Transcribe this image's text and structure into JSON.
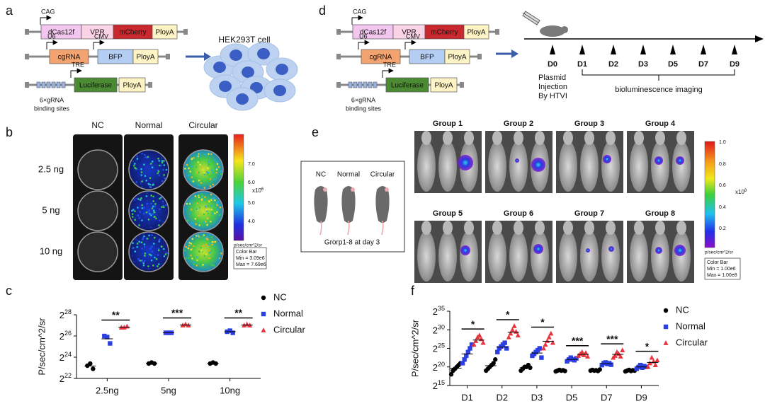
{
  "panel_labels": [
    "a",
    "b",
    "c",
    "d",
    "e",
    "f"
  ],
  "a": {
    "constructs": [
      {
        "promoters": [
          "CAG"
        ],
        "parts": [
          "dCas12f",
          "VPR",
          "mCherry",
          "PloyA"
        ]
      },
      {
        "promoters": [
          "U6",
          "CMV"
        ],
        "parts": [
          "cgRNA",
          "BFP",
          "PloyA"
        ]
      },
      {
        "promoters": [
          "TRE"
        ],
        "parts": [
          "Luciferase",
          "PloyA"
        ],
        "note": [
          "6×gRNA",
          "binding sites"
        ]
      }
    ],
    "cell_label": "HEK293T cell"
  },
  "b": {
    "columns": [
      "NC",
      "Normal",
      "Circular"
    ],
    "rows": [
      "2.5 ng",
      "5 ng",
      "10 ng"
    ],
    "colorbar": {
      "ticks": [
        "7.0",
        "6.0",
        "5.0",
        "4.0"
      ],
      "multiplier": "x10",
      "exponent": "6",
      "unit": "p/sec/cm^2/sr",
      "box": [
        "Color Bar",
        "Min = 3.09e6",
        "Max = 7.69e6"
      ]
    }
  },
  "d": {
    "constructs": [
      {
        "promoters": [
          "CAG"
        ],
        "parts": [
          "dCas12f",
          "VPR",
          "mCherry",
          "PloyA"
        ]
      },
      {
        "promoters": [
          "U6",
          "CMV"
        ],
        "parts": [
          "cgRNA",
          "BFP",
          "PloyA"
        ]
      },
      {
        "promoters": [
          "TRE"
        ],
        "parts": [
          "Luciferase",
          "PloyA"
        ],
        "note": [
          "6×gRNA",
          "binding sites"
        ]
      }
    ],
    "timepoints": [
      "D0",
      "D1",
      "D2",
      "D3",
      "D5",
      "D7",
      "D9"
    ],
    "injection": [
      "Plasmid",
      "Injection",
      "By HTVI"
    ],
    "imaging": "bioluminescence imaging"
  },
  "e": {
    "inset": {
      "labels": [
        "NC",
        "Normal",
        "Circular"
      ],
      "caption": "Grorp1-8 at day 3"
    },
    "groups": [
      "Group 1",
      "Group 2",
      "Group 3",
      "Group 4",
      "Group 5",
      "Group 6",
      "Group 7",
      "Group 8"
    ],
    "colorbar": {
      "ticks": [
        "1.0",
        "0.8",
        "0.6",
        "0.4",
        "0.2"
      ],
      "multiplier": "x10",
      "exponent": "8",
      "unit": "p/sec/cm^2/sr",
      "box": [
        "Color Bar",
        "Min = 1.00e6",
        "Max = 1.00e8"
      ]
    }
  },
  "chart_data": [
    {
      "type": "scatter",
      "ylabel": "P/sec/cm^2/sr",
      "y_tick_base": "2",
      "ylim": [
        22,
        28
      ],
      "yticks": [
        22,
        24,
        26,
        28
      ],
      "categories": [
        "2.5ng",
        "5ng",
        "10ng"
      ],
      "series": [
        {
          "name": "NC",
          "color": "#000000",
          "marker": "circle",
          "values": [
            [
              23.2,
              23.4,
              22.9
            ],
            [
              23.4,
              23.5,
              23.4
            ],
            [
              23.4,
              23.5,
              23.4
            ]
          ]
        },
        {
          "name": "Normal",
          "color": "#2b3fe3",
          "marker": "square",
          "values": [
            [
              26.0,
              25.9,
              25.3
            ],
            [
              26.3,
              26.3,
              26.3
            ],
            [
              26.4,
              26.5,
              26.3
            ]
          ]
        },
        {
          "name": "Circular",
          "color": "#e8343c",
          "marker": "triangle",
          "values": [
            [
              26.8,
              26.8,
              26.9
            ],
            [
              27.0,
              27.1,
              27.0
            ],
            [
              27.0,
              27.1,
              27.0
            ]
          ]
        }
      ],
      "significance": [
        "**",
        "***",
        "**"
      ],
      "legend": "right"
    },
    {
      "type": "scatter",
      "ylabel": "P/sec/cm^2/sr",
      "y_tick_base": "2",
      "ylim": [
        15,
        35
      ],
      "yticks": [
        15,
        20,
        25,
        30,
        35
      ],
      "categories": [
        "D1",
        "D2",
        "D3",
        "D5",
        "D7",
        "D9"
      ],
      "series": [
        {
          "name": "NC",
          "color": "#000000",
          "marker": "circle",
          "values": [
            [
              18,
              19,
              19.5,
              20,
              20.5,
              21
            ],
            [
              19,
              19.5,
              20,
              20.5,
              21,
              22
            ],
            [
              19,
              19.5,
              20,
              20,
              20.5,
              19.8
            ],
            [
              18.8,
              19,
              19.2,
              19,
              19.1,
              18.9
            ],
            [
              19,
              19.2,
              19,
              19.1,
              18.9,
              19.3
            ],
            [
              18.8,
              19,
              19.2,
              18.9,
              19.1,
              19
            ]
          ]
        },
        {
          "name": "Normal",
          "color": "#2b3fe3",
          "marker": "square",
          "values": [
            [
              21,
              22,
              23,
              24,
              25,
              26
            ],
            [
              24,
              25,
              25.5,
              26,
              26.5,
              25
            ],
            [
              23,
              23.5,
              24,
              24.5,
              25,
              22.5
            ],
            [
              21.5,
              22,
              22.5,
              22,
              21.8,
              22.3
            ],
            [
              20.5,
              21,
              21.2,
              20.8,
              21,
              20.6
            ],
            [
              19.5,
              20,
              20.5,
              19.8,
              20.2,
              20
            ]
          ]
        },
        {
          "name": "Circular",
          "color": "#e8343c",
          "marker": "triangle",
          "values": [
            [
              26,
              27,
              28,
              28.5,
              27.5,
              26.5
            ],
            [
              28,
              29,
              30,
              31,
              29.5,
              28.5
            ],
            [
              25,
              26,
              27,
              28,
              29,
              26.5
            ],
            [
              23,
              23.5,
              24,
              23.2,
              23.8,
              22.8
            ],
            [
              22.5,
              23,
              24,
              23.5,
              22.8,
              24.5
            ],
            [
              20,
              21,
              22.5,
              21.5,
              20.5,
              21.8
            ]
          ]
        }
      ],
      "significance": [
        "*",
        "*",
        "*",
        "***",
        "***",
        "*"
      ],
      "legend": "right"
    }
  ]
}
